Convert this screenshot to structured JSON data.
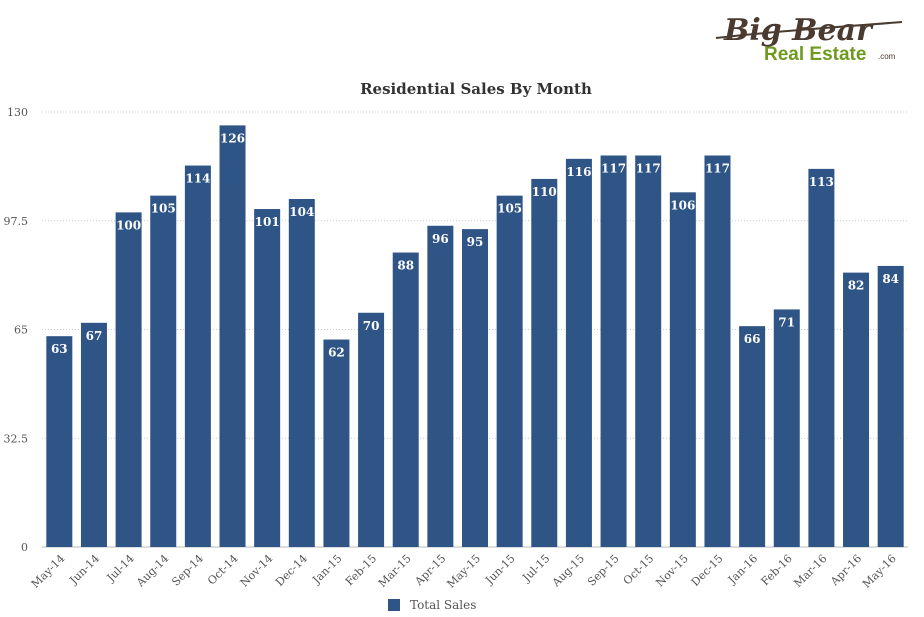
{
  "logo": {
    "line1": "Big Bear",
    "line2": "Real Estate",
    "suffix": ".com",
    "colors": {
      "line1": "#4a3a30",
      "line2": "#6f9a1f",
      "suffix": "#4a3a30"
    }
  },
  "chart_data": {
    "type": "bar",
    "title": "Residential Sales By Month",
    "xlabel": "",
    "ylabel": "",
    "ylim": [
      0,
      130
    ],
    "yticks": [
      "0",
      "32.5",
      "65",
      "97.5",
      "130"
    ],
    "grid": true,
    "legend_position": "bottom",
    "bar_color": "#2f5587",
    "categories": [
      "May-14",
      "Jun-14",
      "Jul-14",
      "Aug-14",
      "Sep-14",
      "Oct-14",
      "Nov-14",
      "Dec-14",
      "Jan-15",
      "Feb-15",
      "Mar-15",
      "Apr-15",
      "May-15",
      "Jun-15",
      "Jul-15",
      "Aug-15",
      "Sep-15",
      "Oct-15",
      "Nov-15",
      "Dec-15",
      "Jan-16",
      "Feb-16",
      "Mar-16",
      "Apr-16",
      "May-16"
    ],
    "series": [
      {
        "name": "Total Sales",
        "values": [
          63,
          67,
          100,
          105,
          114,
          126,
          101,
          104,
          62,
          70,
          88,
          96,
          95,
          105,
          110,
          116,
          117,
          117,
          106,
          117,
          66,
          71,
          113,
          82,
          84
        ]
      }
    ]
  }
}
